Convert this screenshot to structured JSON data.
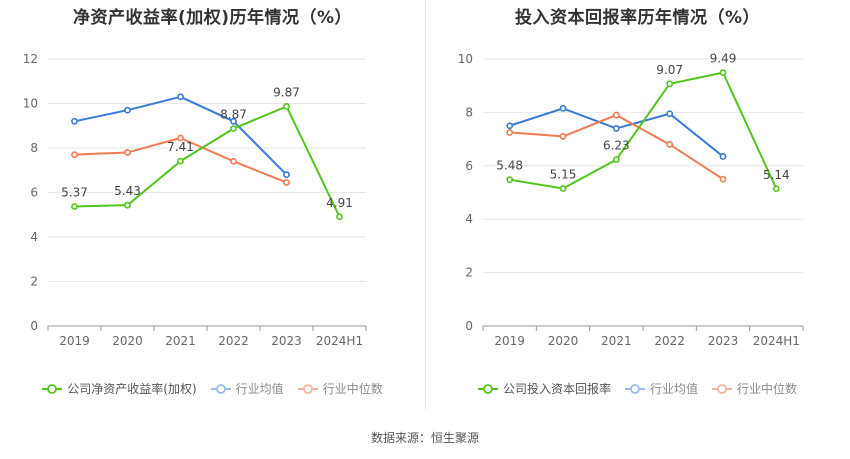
{
  "source_text": "数据来源：恒生聚源",
  "chart_data": [
    {
      "type": "line",
      "title": "净资产收益率(加权)历年情况（%）",
      "categories": [
        "2019",
        "2020",
        "2021",
        "2022",
        "2023",
        "2024H1"
      ],
      "ylim": [
        0,
        12
      ],
      "yticks": [
        0,
        2,
        4,
        6,
        8,
        10,
        12
      ],
      "grid": true,
      "legend_position": "bottom",
      "series": [
        {
          "name": "公司净资产收益率(加权)",
          "color": "#52c41a",
          "values": [
            5.37,
            5.43,
            7.41,
            8.87,
            9.87,
            4.91
          ],
          "labels": [
            "5.37",
            "5.43",
            "7.41",
            "8.87",
            "9.87",
            "4.91"
          ]
        },
        {
          "name": "行业均值",
          "color": "#3a78dc",
          "values": [
            9.2,
            9.7,
            10.3,
            9.2,
            6.8,
            null
          ],
          "labels": null
        },
        {
          "name": "行业中位数",
          "color": "#f07b52",
          "values": [
            7.7,
            7.8,
            8.45,
            7.4,
            6.45,
            null
          ],
          "labels": null
        }
      ]
    },
    {
      "type": "line",
      "title": "投入资本回报率历年情况（%）",
      "categories": [
        "2019",
        "2020",
        "2021",
        "2022",
        "2023",
        "2024H1"
      ],
      "ylim": [
        0,
        10
      ],
      "yticks": [
        0,
        2,
        4,
        6,
        8,
        10
      ],
      "grid": true,
      "legend_position": "bottom",
      "series": [
        {
          "name": "公司投入资本回报率",
          "color": "#52c41a",
          "values": [
            5.48,
            5.15,
            6.23,
            9.07,
            9.49,
            5.14
          ],
          "labels": [
            "5.48",
            "5.15",
            "6.23",
            "9.07",
            "9.49",
            "5.14"
          ]
        },
        {
          "name": "行业均值",
          "color": "#3a78dc",
          "values": [
            7.5,
            8.15,
            7.4,
            7.95,
            6.35,
            null
          ],
          "labels": null
        },
        {
          "name": "行业中位数",
          "color": "#f07b52",
          "values": [
            7.25,
            7.1,
            7.9,
            6.8,
            5.5,
            null
          ],
          "labels": null
        }
      ]
    }
  ]
}
